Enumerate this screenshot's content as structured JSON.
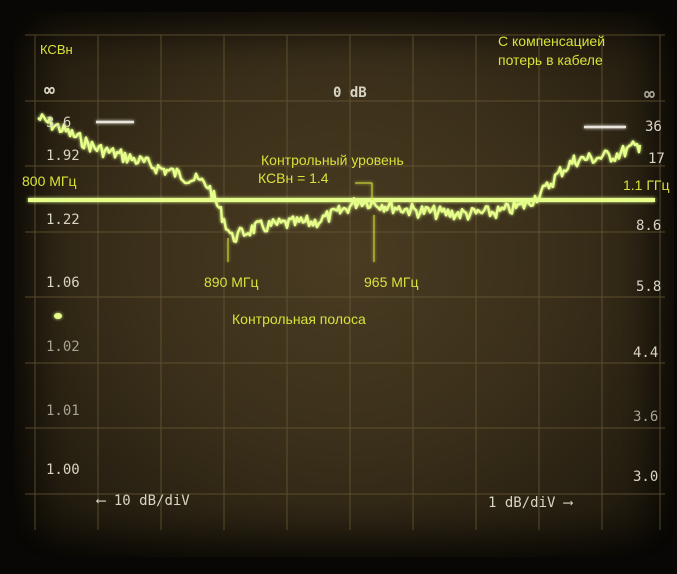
{
  "screen": {
    "left_scale": {
      "title": "КСВн",
      "ticks": [
        "∞",
        "3.6",
        "1.92",
        "1.22",
        "1.06",
        "1.02",
        "1.01",
        "1.00"
      ],
      "division_label": "10 dB/diV"
    },
    "right_scale": {
      "ticks": [
        "∞",
        "36",
        "17",
        "8.6",
        "5.8",
        "4.4",
        "3.6",
        "3.0"
      ],
      "division_label": "1 dB/diV"
    },
    "reference_label": "0 dB",
    "cable_note": [
      "С компенсацией",
      "потерь в кабеле"
    ],
    "freq_start": "800 МГц",
    "freq_end": "1.1 ГГц",
    "control_level": [
      "Контрольный уровень",
      "КСВн = 1.4"
    ],
    "band_low": "890 МГц",
    "band_high": "965 МГц",
    "control_band": "Контрольная полоса"
  },
  "colors": {
    "trace": "#e6ff8a",
    "annotation": "#d9e23a",
    "graticule": "#6b5b36",
    "phosphor_background": "#3a2f1a"
  }
}
